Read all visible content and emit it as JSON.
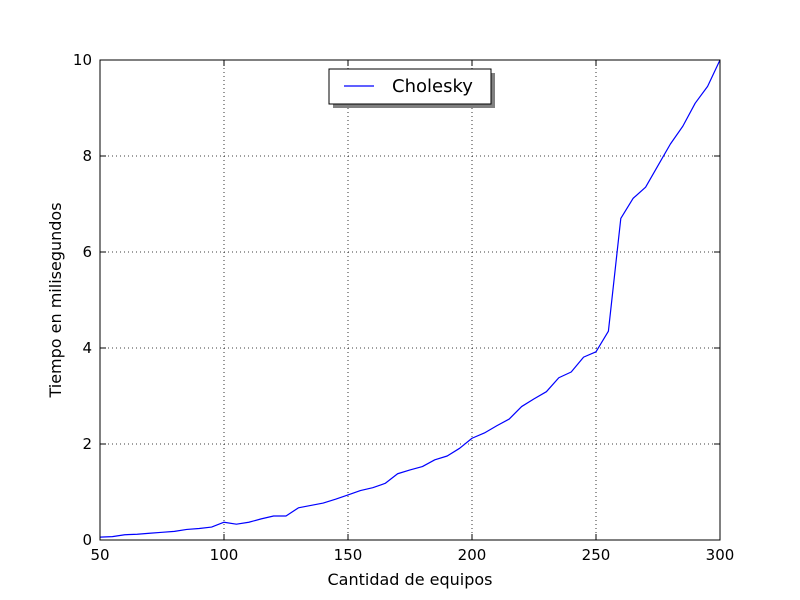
{
  "chart_data": {
    "type": "line",
    "title": "",
    "xlabel": "Cantidad de equipos",
    "ylabel": "Tiempo en milisegundos",
    "xlim": [
      50,
      300
    ],
    "ylim": [
      0,
      10
    ],
    "x_ticks": [
      50,
      100,
      150,
      200,
      250,
      300
    ],
    "y_ticks": [
      0,
      2,
      4,
      6,
      8,
      10
    ],
    "grid": true,
    "legend": "top-center",
    "series": [
      {
        "name": "Cholesky",
        "color": "#0000ff",
        "x": [
          50,
          55,
          60,
          65,
          70,
          75,
          80,
          85,
          90,
          95,
          100,
          105,
          110,
          115,
          120,
          125,
          130,
          135,
          140,
          145,
          150,
          155,
          160,
          165,
          170,
          175,
          180,
          185,
          190,
          195,
          200,
          205,
          210,
          215,
          220,
          225,
          230,
          235,
          240,
          245,
          250,
          255,
          260,
          265,
          270,
          275,
          280,
          285,
          290,
          295,
          300
        ],
        "y": [
          0.06,
          0.07,
          0.11,
          0.12,
          0.14,
          0.16,
          0.18,
          0.22,
          0.24,
          0.27,
          0.37,
          0.33,
          0.37,
          0.44,
          0.5,
          0.5,
          0.67,
          0.72,
          0.77,
          0.85,
          0.94,
          1.03,
          1.09,
          1.18,
          1.38,
          1.46,
          1.53,
          1.67,
          1.75,
          1.91,
          2.12,
          2.23,
          2.38,
          2.52,
          2.78,
          2.94,
          3.09,
          3.38,
          3.5,
          3.81,
          3.92,
          4.35,
          6.7,
          7.12,
          7.35,
          7.8,
          8.25,
          8.62,
          9.1,
          9.45,
          10.0
        ]
      }
    ]
  }
}
